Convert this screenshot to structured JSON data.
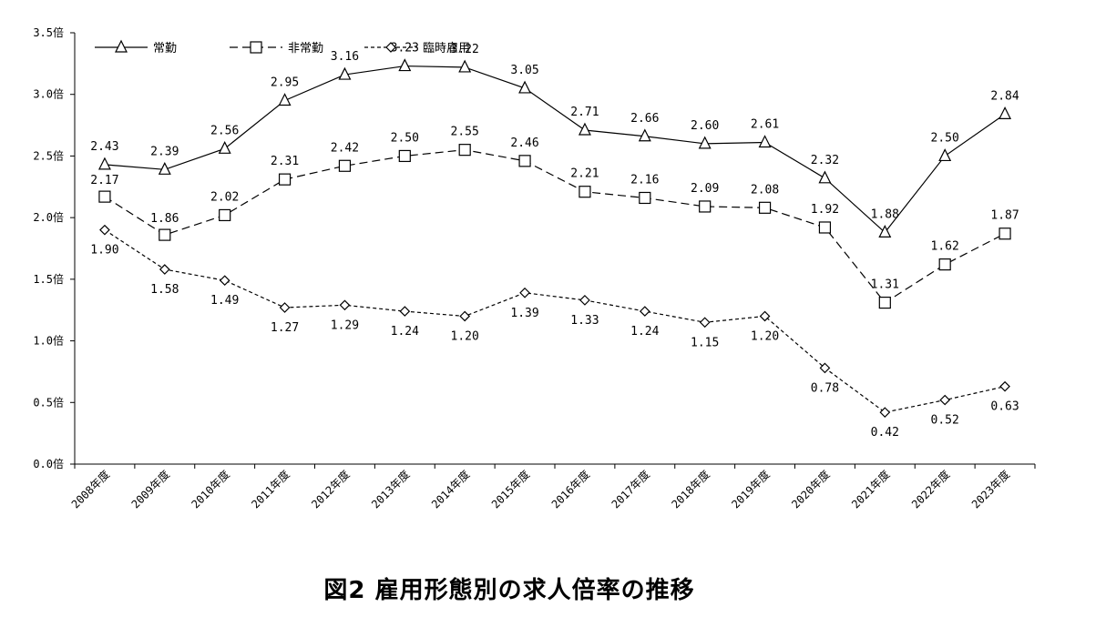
{
  "figure_caption": "図2 雇用形態別の求人倍率の推移",
  "chart_data": {
    "type": "line",
    "title": "",
    "xlabel": "",
    "ylabel": "",
    "ylim": [
      0,
      3.5
    ],
    "y_ticks": [
      "0.0倍",
      "0.5倍",
      "1.0倍",
      "1.5倍",
      "2.0倍",
      "2.5倍",
      "3.0倍",
      "3.5倍"
    ],
    "y_tick_values": [
      0,
      0.5,
      1.0,
      1.5,
      2.0,
      2.5,
      3.0,
      3.5
    ],
    "categories": [
      "2008年度",
      "2009年度",
      "2010年度",
      "2011年度",
      "2012年度",
      "2013年度",
      "2014年度",
      "2015年度",
      "2016年度",
      "2017年度",
      "2018年度",
      "2019年度",
      "2020年度",
      "2021年度",
      "2022年度",
      "2023年度"
    ],
    "grid": false,
    "legend_position": "top-left",
    "series": [
      {
        "name": "常勤",
        "marker": "triangle",
        "line": "solid",
        "values": [
          2.43,
          2.39,
          2.56,
          2.95,
          3.16,
          3.23,
          3.22,
          3.05,
          2.71,
          2.66,
          2.6,
          2.61,
          2.32,
          1.88,
          2.5,
          2.84
        ],
        "value_labels": [
          "2.43",
          "2.39",
          "2.56",
          "2.95",
          "3.16",
          "3.23",
          "3.22",
          "3.05",
          "2.71",
          "2.66",
          "2.60",
          "2.61",
          "2.32",
          "1.88",
          "2.50",
          "2.84"
        ]
      },
      {
        "name": "非常勤",
        "marker": "square",
        "line": "dashed",
        "values": [
          2.17,
          1.86,
          2.02,
          2.31,
          2.42,
          2.5,
          2.55,
          2.46,
          2.21,
          2.16,
          2.09,
          2.08,
          1.92,
          1.31,
          1.62,
          1.87
        ],
        "value_labels": [
          "2.17",
          "1.86",
          "2.02",
          "2.31",
          "2.42",
          "2.50",
          "2.55",
          "2.46",
          "2.21",
          "2.16",
          "2.09",
          "2.08",
          "1.92",
          "1.31",
          "1.62",
          "1.87"
        ]
      },
      {
        "name": "臨時雇用",
        "marker": "diamond",
        "line": "dotted",
        "values": [
          1.9,
          1.58,
          1.49,
          1.27,
          1.29,
          1.24,
          1.2,
          1.39,
          1.33,
          1.24,
          1.15,
          1.2,
          0.78,
          0.42,
          0.52,
          0.63
        ],
        "value_labels": [
          "1.90",
          "1.58",
          "1.49",
          "1.27",
          "1.29",
          "1.24",
          "1.20",
          "1.39",
          "1.33",
          "1.24",
          "1.15",
          "1.20",
          "0.78",
          "0.42",
          "0.52",
          "0.63"
        ]
      }
    ],
    "colors": {
      "line": "#000000",
      "background": "#ffffff"
    }
  }
}
